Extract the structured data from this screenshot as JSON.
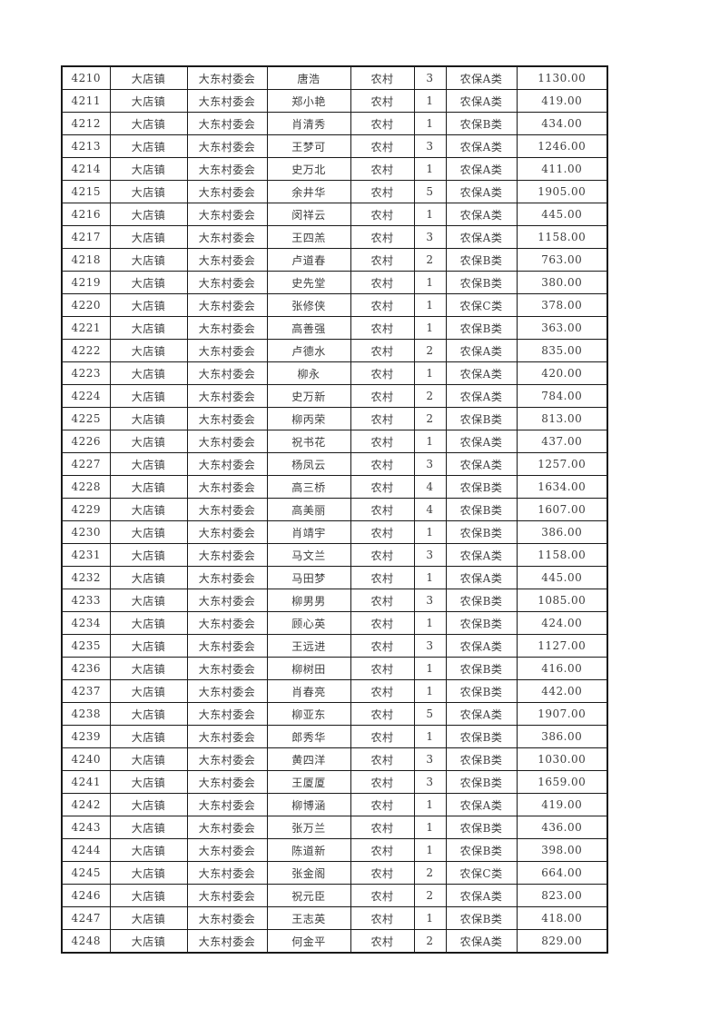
{
  "table": {
    "rows": [
      [
        "4210",
        "大店镇",
        "大东村委会",
        "唐浩",
        "农村",
        "3",
        "农保A类",
        "1130.00"
      ],
      [
        "4211",
        "大店镇",
        "大东村委会",
        "郑小艳",
        "农村",
        "1",
        "农保A类",
        "419.00"
      ],
      [
        "4212",
        "大店镇",
        "大东村委会",
        "肖清秀",
        "农村",
        "1",
        "农保B类",
        "434.00"
      ],
      [
        "4213",
        "大店镇",
        "大东村委会",
        "王梦可",
        "农村",
        "3",
        "农保A类",
        "1246.00"
      ],
      [
        "4214",
        "大店镇",
        "大东村委会",
        "史万北",
        "农村",
        "1",
        "农保A类",
        "411.00"
      ],
      [
        "4215",
        "大店镇",
        "大东村委会",
        "余井华",
        "农村",
        "5",
        "农保A类",
        "1905.00"
      ],
      [
        "4216",
        "大店镇",
        "大东村委会",
        "闵祥云",
        "农村",
        "1",
        "农保A类",
        "445.00"
      ],
      [
        "4217",
        "大店镇",
        "大东村委会",
        "王四羔",
        "农村",
        "3",
        "农保A类",
        "1158.00"
      ],
      [
        "4218",
        "大店镇",
        "大东村委会",
        "卢道春",
        "农村",
        "2",
        "农保B类",
        "763.00"
      ],
      [
        "4219",
        "大店镇",
        "大东村委会",
        "史先堂",
        "农村",
        "1",
        "农保B类",
        "380.00"
      ],
      [
        "4220",
        "大店镇",
        "大东村委会",
        "张修侠",
        "农村",
        "1",
        "农保C类",
        "378.00"
      ],
      [
        "4221",
        "大店镇",
        "大东村委会",
        "高善强",
        "农村",
        "1",
        "农保B类",
        "363.00"
      ],
      [
        "4222",
        "大店镇",
        "大东村委会",
        "卢德水",
        "农村",
        "2",
        "农保A类",
        "835.00"
      ],
      [
        "4223",
        "大店镇",
        "大东村委会",
        "柳永",
        "农村",
        "1",
        "农保A类",
        "420.00"
      ],
      [
        "4224",
        "大店镇",
        "大东村委会",
        "史万新",
        "农村",
        "2",
        "农保A类",
        "784.00"
      ],
      [
        "4225",
        "大店镇",
        "大东村委会",
        "柳丙荣",
        "农村",
        "2",
        "农保B类",
        "813.00"
      ],
      [
        "4226",
        "大店镇",
        "大东村委会",
        "祝书花",
        "农村",
        "1",
        "农保A类",
        "437.00"
      ],
      [
        "4227",
        "大店镇",
        "大东村委会",
        "杨凤云",
        "农村",
        "3",
        "农保A类",
        "1257.00"
      ],
      [
        "4228",
        "大店镇",
        "大东村委会",
        "高三桥",
        "农村",
        "4",
        "农保B类",
        "1634.00"
      ],
      [
        "4229",
        "大店镇",
        "大东村委会",
        "高美丽",
        "农村",
        "4",
        "农保B类",
        "1607.00"
      ],
      [
        "4230",
        "大店镇",
        "大东村委会",
        "肖靖宇",
        "农村",
        "1",
        "农保B类",
        "386.00"
      ],
      [
        "4231",
        "大店镇",
        "大东村委会",
        "马文兰",
        "农村",
        "3",
        "农保A类",
        "1158.00"
      ],
      [
        "4232",
        "大店镇",
        "大东村委会",
        "马田梦",
        "农村",
        "1",
        "农保A类",
        "445.00"
      ],
      [
        "4233",
        "大店镇",
        "大东村委会",
        "柳男男",
        "农村",
        "3",
        "农保B类",
        "1085.00"
      ],
      [
        "4234",
        "大店镇",
        "大东村委会",
        "顾心英",
        "农村",
        "1",
        "农保B类",
        "424.00"
      ],
      [
        "4235",
        "大店镇",
        "大东村委会",
        "王远进",
        "农村",
        "3",
        "农保A类",
        "1127.00"
      ],
      [
        "4236",
        "大店镇",
        "大东村委会",
        "柳树田",
        "农村",
        "1",
        "农保B类",
        "416.00"
      ],
      [
        "4237",
        "大店镇",
        "大东村委会",
        "肖春亮",
        "农村",
        "1",
        "农保B类",
        "442.00"
      ],
      [
        "4238",
        "大店镇",
        "大东村委会",
        "柳亚东",
        "农村",
        "5",
        "农保A类",
        "1907.00"
      ],
      [
        "4239",
        "大店镇",
        "大东村委会",
        "郎秀华",
        "农村",
        "1",
        "农保B类",
        "386.00"
      ],
      [
        "4240",
        "大店镇",
        "大东村委会",
        "黄四洋",
        "农村",
        "3",
        "农保B类",
        "1030.00"
      ],
      [
        "4241",
        "大店镇",
        "大东村委会",
        "王厦厦",
        "农村",
        "3",
        "农保B类",
        "1659.00"
      ],
      [
        "4242",
        "大店镇",
        "大东村委会",
        "柳博涵",
        "农村",
        "1",
        "农保A类",
        "419.00"
      ],
      [
        "4243",
        "大店镇",
        "大东村委会",
        "张万兰",
        "农村",
        "1",
        "农保B类",
        "436.00"
      ],
      [
        "4244",
        "大店镇",
        "大东村委会",
        "陈道新",
        "农村",
        "1",
        "农保B类",
        "398.00"
      ],
      [
        "4245",
        "大店镇",
        "大东村委会",
        "张金阁",
        "农村",
        "2",
        "农保C类",
        "664.00"
      ],
      [
        "4246",
        "大店镇",
        "大东村委会",
        "祝元臣",
        "农村",
        "2",
        "农保A类",
        "823.00"
      ],
      [
        "4247",
        "大店镇",
        "大东村委会",
        "王志英",
        "农村",
        "1",
        "农保B类",
        "418.00"
      ],
      [
        "4248",
        "大店镇",
        "大东村委会",
        "何金平",
        "农村",
        "2",
        "农保A类",
        "829.00"
      ]
    ],
    "border_color": "#1a1a1a",
    "text_color": "#3d3d3d",
    "page_background": "#ffffff"
  }
}
